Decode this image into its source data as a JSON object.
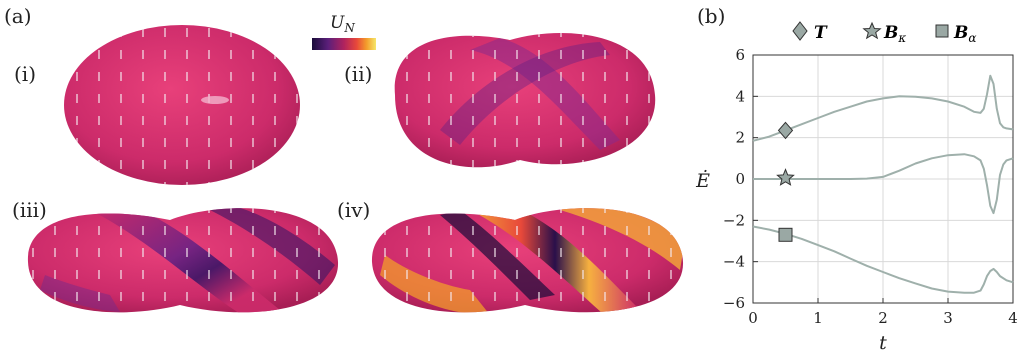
{
  "panel_a": {
    "label": "(a)",
    "colorbar_label": "U_N",
    "colorbar_colors": [
      "#1a0c3a",
      "#5b1f7a",
      "#b0235e",
      "#e8493a",
      "#f39c2b",
      "#f6e76a"
    ],
    "shape_labels": [
      "(i)",
      "(ii)",
      "(iii)",
      "(iv)"
    ],
    "surface_color": "#cc2b6a",
    "dark_band_color": "#3b1566",
    "bright_band_color": "#f2a23a"
  },
  "panel_b": {
    "label": "(b)",
    "legend": [
      {
        "symbol": "diamond",
        "name": "T"
      },
      {
        "symbol": "star",
        "name": "B_κ"
      },
      {
        "symbol": "square",
        "name": "B_α"
      }
    ]
  },
  "chart_data": {
    "type": "line",
    "title": "",
    "xlabel": "t",
    "ylabel": "Ė",
    "xlim": [
      0,
      4
    ],
    "ylim": [
      -6,
      6
    ],
    "xticks": [
      0,
      1,
      2,
      3,
      4
    ],
    "yticks": [
      -6,
      -4,
      -2,
      0,
      2,
      4,
      6
    ],
    "grid": true,
    "legend_placement": "top",
    "line_color": "#9fb0ab",
    "series": [
      {
        "name": "T",
        "marker": "diamond",
        "marker_at": [
          0.5,
          2.35
        ],
        "x": [
          0,
          0.25,
          0.5,
          0.75,
          1.0,
          1.25,
          1.5,
          1.75,
          2.0,
          2.25,
          2.5,
          2.75,
          3.0,
          3.25,
          3.4,
          3.5,
          3.55,
          3.6,
          3.65,
          3.7,
          3.75,
          3.8,
          3.85,
          3.9,
          4.0
        ],
        "y": [
          1.85,
          2.05,
          2.35,
          2.65,
          2.95,
          3.25,
          3.5,
          3.75,
          3.9,
          4.0,
          3.98,
          3.9,
          3.75,
          3.5,
          3.25,
          3.2,
          3.4,
          4.1,
          5.0,
          4.6,
          3.4,
          2.7,
          2.5,
          2.45,
          2.4
        ]
      },
      {
        "name": "B_κ",
        "marker": "star",
        "marker_at": [
          0.5,
          0.05
        ],
        "x": [
          0,
          0.5,
          1.0,
          1.5,
          1.75,
          2.0,
          2.25,
          2.5,
          2.75,
          3.0,
          3.25,
          3.4,
          3.5,
          3.55,
          3.6,
          3.65,
          3.7,
          3.75,
          3.8,
          3.85,
          3.9,
          4.0
        ],
        "y": [
          0.0,
          0.0,
          0.0,
          0.0,
          0.02,
          0.1,
          0.4,
          0.75,
          1.0,
          1.15,
          1.2,
          1.1,
          0.9,
          0.5,
          -0.3,
          -1.3,
          -1.65,
          -1.0,
          0.2,
          0.7,
          0.9,
          1.0
        ]
      },
      {
        "name": "B_α",
        "marker": "square",
        "marker_at": [
          0.5,
          -2.7
        ],
        "x": [
          0,
          0.25,
          0.5,
          0.75,
          1.0,
          1.25,
          1.5,
          1.75,
          2.0,
          2.25,
          2.5,
          2.75,
          3.0,
          3.25,
          3.4,
          3.5,
          3.55,
          3.6,
          3.65,
          3.7,
          3.75,
          3.8,
          3.9,
          4.0
        ],
        "y": [
          -2.3,
          -2.45,
          -2.65,
          -2.9,
          -3.2,
          -3.5,
          -3.85,
          -4.2,
          -4.5,
          -4.8,
          -5.05,
          -5.3,
          -5.45,
          -5.5,
          -5.5,
          -5.4,
          -5.1,
          -4.7,
          -4.45,
          -4.35,
          -4.5,
          -4.7,
          -4.9,
          -5.0
        ]
      }
    ]
  }
}
